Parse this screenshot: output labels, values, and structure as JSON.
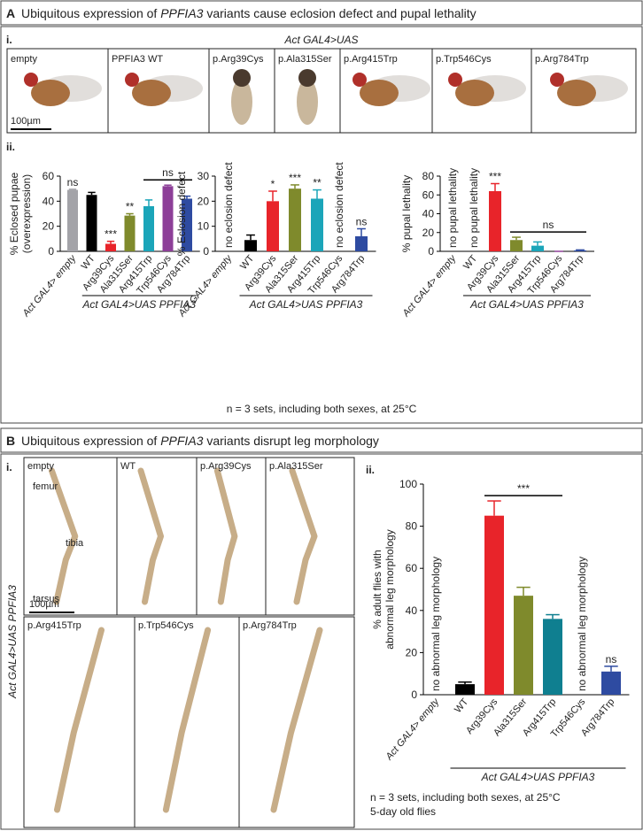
{
  "panels": [
    {
      "letter": "A",
      "title": [
        "Ubiquitous expression of ",
        "PPFIA3",
        " variants cause eclosion defect and pupal lethality"
      ]
    },
    {
      "letter": "B",
      "title": [
        "Ubiquitous expression of ",
        "PPFIA3",
        " variants disrupt leg morphology"
      ]
    }
  ],
  "panel_a": {
    "sublabel_i": "i.",
    "genotype": "Act GAL4>UAS",
    "photos": [
      "empty",
      "PPFIA3 WT",
      "p.Arg39Cys",
      "p.Ala315Ser",
      "p.Arg415Trp",
      "p.Trp546Cys",
      "p.Arg784Trp"
    ],
    "scale_bar": "100µm",
    "sublabel_ii": "ii.",
    "footnote": "n = 3 sets, including both sexes, at 25°C"
  },
  "panel_b": {
    "sublabel_i": "i.",
    "genotype": "Act GAL4>UAS PPFIA3",
    "photos": [
      "empty",
      "WT",
      "p.Arg39Cys",
      "p.Ala315Ser",
      "p.Arg415Trp",
      "p.Trp546Cys",
      "p.Arg784Trp"
    ],
    "anatomy": [
      "femur",
      "tibia",
      "tarsus"
    ],
    "scale_bar": "100µm",
    "sublabel_ii": "ii.",
    "footnotes": [
      "n = 3 sets, including both sexes, at 25°C",
      "5-day old flies"
    ]
  },
  "chart_data": [
    {
      "type": "bar",
      "y_label": [
        "% Eclosed pupae",
        "(overexpression)"
      ],
      "categories": [
        "Act GAL4> empty",
        "WT",
        "Arg39Cys",
        "Ala315Ser",
        "Arg415Trp",
        "Trp546Cys",
        "Arg784Trp"
      ],
      "values": [
        49,
        45,
        6,
        28.5,
        36,
        52,
        42
      ],
      "errors": [
        0.5,
        2,
        2,
        1.5,
        5,
        0.8,
        2
      ],
      "colors": [
        "#a3a3a8",
        "#000000",
        "#e8242a",
        "#7f8a2c",
        "#1ba5b9",
        "#8d3f98",
        "#2e4ba1"
      ],
      "significance": [
        "ns",
        null,
        "***",
        "**",
        null,
        null,
        null
      ],
      "empty_labels": [
        null,
        null,
        null,
        null,
        null,
        null,
        null
      ],
      "bracket": {
        "text": "ns",
        "from": "Arg415Trp",
        "to": "Arg784Trp"
      },
      "group_label": "Act GAL4>UAS PPFIA3",
      "ylim": [
        0,
        60
      ],
      "yticks": [
        0,
        20,
        40,
        60
      ]
    },
    {
      "type": "bar",
      "y_label": [
        "% Eclosion defect"
      ],
      "categories": [
        "Act GAL4> empty",
        "WT",
        "Arg39Cys",
        "Ala315Ser",
        "Arg415Trp",
        "Trp546Cys",
        "Arg784Trp"
      ],
      "values": [
        null,
        4.5,
        20,
        25,
        21,
        null,
        6
      ],
      "errors": [
        null,
        2,
        4,
        1.5,
        3.5,
        null,
        3
      ],
      "colors": [
        "#a3a3a8",
        "#000000",
        "#e8242a",
        "#7f8a2c",
        "#1ba5b9",
        "#8d3f98",
        "#2e4ba1"
      ],
      "significance": [
        null,
        null,
        "*",
        "***",
        "**",
        null,
        "ns"
      ],
      "empty_labels": [
        "no eclosion defect",
        null,
        null,
        null,
        null,
        "no eclosion defect",
        null
      ],
      "group_label": "Act GAL4>UAS PPFIA3",
      "ylim": [
        0,
        30
      ],
      "yticks": [
        0,
        10,
        20,
        30
      ]
    },
    {
      "type": "bar",
      "y_label": [
        "% pupal lethality"
      ],
      "categories": [
        "Act GAL4> empty",
        "WT",
        "Arg39Cys",
        "Ala315Ser",
        "Arg415Trp",
        "Trp546Cys",
        "Arg784Trp"
      ],
      "values": [
        null,
        null,
        64,
        12,
        6,
        0,
        1
      ],
      "errors": [
        null,
        null,
        8,
        3,
        4,
        0,
        0.5
      ],
      "colors": [
        "#a3a3a8",
        "#000000",
        "#e8242a",
        "#7f8a2c",
        "#1ba5b9",
        "#8d3f98",
        "#2e4ba1"
      ],
      "significance": [
        null,
        null,
        "***",
        null,
        null,
        null,
        null
      ],
      "empty_labels": [
        "no pupal lethality",
        "no pupal lethality",
        null,
        null,
        null,
        null,
        null
      ],
      "bracket": {
        "text": "ns",
        "from": "Ala315Ser",
        "to": "Arg784Trp"
      },
      "group_label": "Act GAL4>UAS PPFIA3",
      "ylim": [
        0,
        80
      ],
      "yticks": [
        0,
        20,
        40,
        60,
        80
      ]
    },
    {
      "type": "bar",
      "y_label": [
        "% adult flies with",
        "abnormal leg morphology"
      ],
      "categories": [
        "Act GAL4> empty",
        "WT",
        "Arg39Cys",
        "Ala315Ser",
        "Arg415Trp",
        "Trp546Cys",
        "Arg784Trp"
      ],
      "values": [
        null,
        5,
        85,
        47,
        36,
        null,
        11
      ],
      "errors": [
        null,
        1,
        7,
        4,
        2,
        null,
        2.5
      ],
      "colors": [
        "#a3a3a8",
        "#000000",
        "#e8242a",
        "#7f8a2c",
        "#0f7f90",
        "#8d3f98",
        "#2e4ba1"
      ],
      "significance": [
        null,
        null,
        null,
        null,
        null,
        null,
        "ns"
      ],
      "empty_labels": [
        "no abnormal leg morphology",
        null,
        null,
        null,
        null,
        "no abnormal leg morphology",
        null
      ],
      "bracket": {
        "text": "***",
        "from": "Arg39Cys",
        "to": "Arg415Trp"
      },
      "group_label": "Act GAL4>UAS PPFIA3",
      "ylim": [
        0,
        100
      ],
      "yticks": [
        0,
        20,
        40,
        60,
        80,
        100
      ]
    }
  ]
}
